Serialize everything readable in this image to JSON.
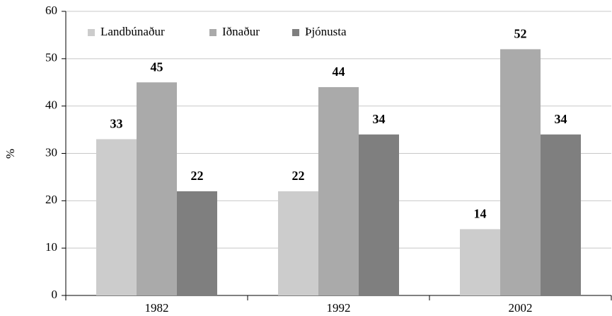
{
  "chart_data": {
    "type": "bar",
    "categories": [
      "1982",
      "1992",
      "2002"
    ],
    "series": [
      {
        "name": "Landbúnaður",
        "color": "#cccccc",
        "values": [
          33,
          22,
          14
        ]
      },
      {
        "name": "Iðnaður",
        "color": "#aaaaaa",
        "values": [
          45,
          44,
          52
        ]
      },
      {
        "name": "Þjónusta",
        "color": "#7f7f7f",
        "values": [
          22,
          34,
          34
        ]
      }
    ],
    "ylabel": "%",
    "ylim": [
      0,
      60
    ],
    "yticks": [
      0,
      10,
      20,
      30,
      40,
      50,
      60
    ],
    "grid": true,
    "legend": "top-left"
  }
}
